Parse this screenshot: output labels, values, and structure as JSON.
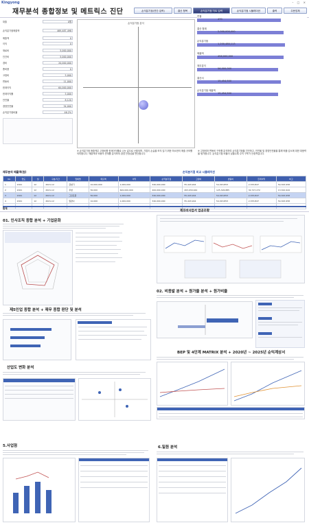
{
  "app": {
    "logo": "Kingyong",
    "title": "재무분석 종합정보 및 메트릭스 진단",
    "window_controls": "– □ ×"
  },
  "toolbar": {
    "buttons": [
      "손익분기점(연간 입력)",
      "결산 항목",
      "손익분기점 차트 입력",
      "손익분기점 시뮬레이션",
      "출력",
      "주문업체"
    ]
  },
  "form": {
    "rows": [
      {
        "label": "대출",
        "value": "0원"
      },
      {
        "label": "손익분기점매출액",
        "value": "469,487,498"
      },
      {
        "label": "매출액",
        "value": "0"
      },
      {
        "label": "이익",
        "value": "0"
      },
      {
        "label": "재료비",
        "value": "5,000,000"
      },
      {
        "label": "인건비",
        "value": "5,000,000"
      },
      {
        "label": "경비",
        "value": "20,000,000"
      },
      {
        "label": "총비용",
        "value": "0"
      },
      {
        "label": "고정비",
        "value": "5,000"
      },
      {
        "label": "변동비",
        "value": "11,000"
      },
      {
        "label": "한계이익",
        "value": "64,000,000"
      },
      {
        "label": "한계이익률",
        "value": "5,000"
      },
      {
        "label": "안전율",
        "value": "8,120"
      },
      {
        "label": "경영안전율",
        "value": "34,000"
      },
      {
        "label": "손익분기점비율",
        "value": "46.2%"
      }
    ]
  },
  "scatter_title": "손익분기점 분석",
  "right_bars": [
    {
      "label": "연결",
      "value": "470"
    },
    {
      "label": "결산 합계",
      "value": "2,000,000,000"
    },
    {
      "label": "손익분기점",
      "value": "1,200,480,113"
    },
    {
      "label": "매출액",
      "value": "456,000,000"
    },
    {
      "label": "재무분석",
      "value": "56,000,000"
    },
    {
      "label": "결산서",
      "value": "15,454,500"
    },
    {
      "label": "손익분기점 매출액",
      "value": "15,454,500"
    }
  ],
  "desc_left": "※ 손익분기점 매출액은 고정비를 한계이익률로 나눈 값으로 산출되며, 기업이 손실을 보지 않기 위한 최소한의 매출 규모를 의미합니다. 매출액과 비용의 관계를 분석하여 경영 안정성을 판단합니다.",
  "desc_right": "※ 고정비와 변동비 구조를 분석하여 손익분기점을 진단하고, 안전율 및 경영안전율을 통해 매출 감소에 대한 대응력을 평가합니다. 손익분기점 비율이 낮을수록 수익 구조가 안정적입니다.",
  "table": {
    "caption_left": "재무분석 매출액(원)",
    "caption_right": "손익분기점 비교 시뮬레이션",
    "headers": [
      "No",
      "연도",
      "월",
      "구분/기간",
      "업체명",
      "매출액",
      "이익",
      "손익분기점",
      "고정비",
      "변동비",
      "한계이익",
      "비고"
    ],
    "rows": [
      [
        "1",
        "2021",
        "12",
        "2021-12",
        "금성기",
        "10,000,000",
        "1,000,000",
        "340,000,000",
        "55,443,944",
        "54,343,853",
        "2,333,847",
        "54,343,958"
      ],
      [
        "2",
        "2021",
        "12",
        "2021-12",
        "우성",
        "50,000",
        "600,000,000",
        "400,000,000",
        "263,939,944",
        "125,326,885",
        "32,727,272",
        "13,322,944"
      ],
      [
        "3",
        "2021",
        "12",
        "2021-12",
        "그린트윈",
        "50,000",
        "1,000,000",
        "340,000,000",
        "55,443,944",
        "54,343,853",
        "2,333,847",
        "54,343,958"
      ],
      [
        "4",
        "2021",
        "12",
        "2021-12",
        "일양사",
        "10,000",
        "1,000,000",
        "340,000,000",
        "55,443,944",
        "54,343,853",
        "2,333,847",
        "54,343,958"
      ],
      [
        "5",
        "",
        "",
        "",
        "",
        "0",
        "0",
        "0",
        "0",
        "0",
        "0",
        "0"
      ]
    ],
    "total_label": "합계"
  },
  "sections": [
    {
      "title": "01. 인사조직 종합 분석 + 기업문화"
    },
    {
      "title": "제조비사업서 업공조황"
    },
    {
      "title": "제5인업 종합 분석 + 재무 종합 판단 및 분석"
    },
    {
      "title": "02. 비용발 분석 + 원가율 분석 + 원가비율"
    },
    {
      "title": "산업도 변화 분석"
    },
    {
      "title": "BEP 및 4단계 MATRIX 분석 + 2020년 ~ 2025년 순익계상서"
    },
    {
      "title": "5.사업점"
    },
    {
      "title": "6.일원 분석"
    }
  ]
}
